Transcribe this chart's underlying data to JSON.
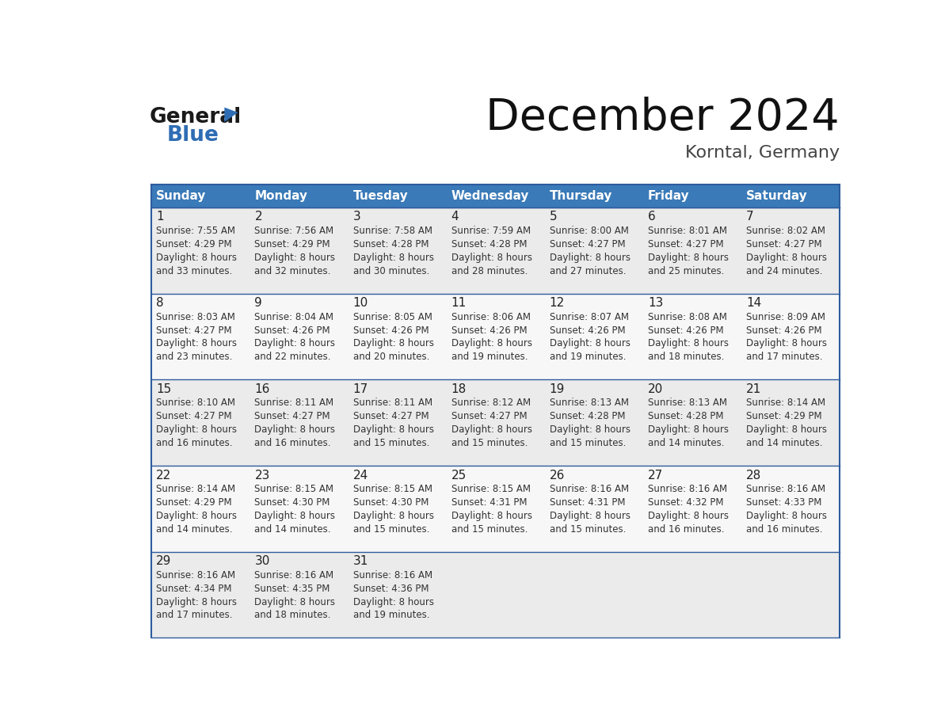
{
  "title": "December 2024",
  "subtitle": "Korntal, Germany",
  "header_bg_color": "#3a7ab8",
  "header_text_color": "#ffffff",
  "cell_bg_even": "#ebebeb",
  "cell_bg_odd": "#f7f7f7",
  "day_headers": [
    "Sunday",
    "Monday",
    "Tuesday",
    "Wednesday",
    "Thursday",
    "Friday",
    "Saturday"
  ],
  "grid_line_color": "#2e5c9e",
  "text_color": "#333333",
  "days": [
    {
      "day": 1,
      "col": 0,
      "row": 0,
      "sunrise": "7:55 AM",
      "sunset": "4:29 PM",
      "daylight": "8 hours",
      "daylight2": "and 33 minutes."
    },
    {
      "day": 2,
      "col": 1,
      "row": 0,
      "sunrise": "7:56 AM",
      "sunset": "4:29 PM",
      "daylight": "8 hours",
      "daylight2": "and 32 minutes."
    },
    {
      "day": 3,
      "col": 2,
      "row": 0,
      "sunrise": "7:58 AM",
      "sunset": "4:28 PM",
      "daylight": "8 hours",
      "daylight2": "and 30 minutes."
    },
    {
      "day": 4,
      "col": 3,
      "row": 0,
      "sunrise": "7:59 AM",
      "sunset": "4:28 PM",
      "daylight": "8 hours",
      "daylight2": "and 28 minutes."
    },
    {
      "day": 5,
      "col": 4,
      "row": 0,
      "sunrise": "8:00 AM",
      "sunset": "4:27 PM",
      "daylight": "8 hours",
      "daylight2": "and 27 minutes."
    },
    {
      "day": 6,
      "col": 5,
      "row": 0,
      "sunrise": "8:01 AM",
      "sunset": "4:27 PM",
      "daylight": "8 hours",
      "daylight2": "and 25 minutes."
    },
    {
      "day": 7,
      "col": 6,
      "row": 0,
      "sunrise": "8:02 AM",
      "sunset": "4:27 PM",
      "daylight": "8 hours",
      "daylight2": "and 24 minutes."
    },
    {
      "day": 8,
      "col": 0,
      "row": 1,
      "sunrise": "8:03 AM",
      "sunset": "4:27 PM",
      "daylight": "8 hours",
      "daylight2": "and 23 minutes."
    },
    {
      "day": 9,
      "col": 1,
      "row": 1,
      "sunrise": "8:04 AM",
      "sunset": "4:26 PM",
      "daylight": "8 hours",
      "daylight2": "and 22 minutes."
    },
    {
      "day": 10,
      "col": 2,
      "row": 1,
      "sunrise": "8:05 AM",
      "sunset": "4:26 PM",
      "daylight": "8 hours",
      "daylight2": "and 20 minutes."
    },
    {
      "day": 11,
      "col": 3,
      "row": 1,
      "sunrise": "8:06 AM",
      "sunset": "4:26 PM",
      "daylight": "8 hours",
      "daylight2": "and 19 minutes."
    },
    {
      "day": 12,
      "col": 4,
      "row": 1,
      "sunrise": "8:07 AM",
      "sunset": "4:26 PM",
      "daylight": "8 hours",
      "daylight2": "and 19 minutes."
    },
    {
      "day": 13,
      "col": 5,
      "row": 1,
      "sunrise": "8:08 AM",
      "sunset": "4:26 PM",
      "daylight": "8 hours",
      "daylight2": "and 18 minutes."
    },
    {
      "day": 14,
      "col": 6,
      "row": 1,
      "sunrise": "8:09 AM",
      "sunset": "4:26 PM",
      "daylight": "8 hours",
      "daylight2": "and 17 minutes."
    },
    {
      "day": 15,
      "col": 0,
      "row": 2,
      "sunrise": "8:10 AM",
      "sunset": "4:27 PM",
      "daylight": "8 hours",
      "daylight2": "and 16 minutes."
    },
    {
      "day": 16,
      "col": 1,
      "row": 2,
      "sunrise": "8:11 AM",
      "sunset": "4:27 PM",
      "daylight": "8 hours",
      "daylight2": "and 16 minutes."
    },
    {
      "day": 17,
      "col": 2,
      "row": 2,
      "sunrise": "8:11 AM",
      "sunset": "4:27 PM",
      "daylight": "8 hours",
      "daylight2": "and 15 minutes."
    },
    {
      "day": 18,
      "col": 3,
      "row": 2,
      "sunrise": "8:12 AM",
      "sunset": "4:27 PM",
      "daylight": "8 hours",
      "daylight2": "and 15 minutes."
    },
    {
      "day": 19,
      "col": 4,
      "row": 2,
      "sunrise": "8:13 AM",
      "sunset": "4:28 PM",
      "daylight": "8 hours",
      "daylight2": "and 15 minutes."
    },
    {
      "day": 20,
      "col": 5,
      "row": 2,
      "sunrise": "8:13 AM",
      "sunset": "4:28 PM",
      "daylight": "8 hours",
      "daylight2": "and 14 minutes."
    },
    {
      "day": 21,
      "col": 6,
      "row": 2,
      "sunrise": "8:14 AM",
      "sunset": "4:29 PM",
      "daylight": "8 hours",
      "daylight2": "and 14 minutes."
    },
    {
      "day": 22,
      "col": 0,
      "row": 3,
      "sunrise": "8:14 AM",
      "sunset": "4:29 PM",
      "daylight": "8 hours",
      "daylight2": "and 14 minutes."
    },
    {
      "day": 23,
      "col": 1,
      "row": 3,
      "sunrise": "8:15 AM",
      "sunset": "4:30 PM",
      "daylight": "8 hours",
      "daylight2": "and 14 minutes."
    },
    {
      "day": 24,
      "col": 2,
      "row": 3,
      "sunrise": "8:15 AM",
      "sunset": "4:30 PM",
      "daylight": "8 hours",
      "daylight2": "and 15 minutes."
    },
    {
      "day": 25,
      "col": 3,
      "row": 3,
      "sunrise": "8:15 AM",
      "sunset": "4:31 PM",
      "daylight": "8 hours",
      "daylight2": "and 15 minutes."
    },
    {
      "day": 26,
      "col": 4,
      "row": 3,
      "sunrise": "8:16 AM",
      "sunset": "4:31 PM",
      "daylight": "8 hours",
      "daylight2": "and 15 minutes."
    },
    {
      "day": 27,
      "col": 5,
      "row": 3,
      "sunrise": "8:16 AM",
      "sunset": "4:32 PM",
      "daylight": "8 hours",
      "daylight2": "and 16 minutes."
    },
    {
      "day": 28,
      "col": 6,
      "row": 3,
      "sunrise": "8:16 AM",
      "sunset": "4:33 PM",
      "daylight": "8 hours",
      "daylight2": "and 16 minutes."
    },
    {
      "day": 29,
      "col": 0,
      "row": 4,
      "sunrise": "8:16 AM",
      "sunset": "4:34 PM",
      "daylight": "8 hours",
      "daylight2": "and 17 minutes."
    },
    {
      "day": 30,
      "col": 1,
      "row": 4,
      "sunrise": "8:16 AM",
      "sunset": "4:35 PM",
      "daylight": "8 hours",
      "daylight2": "and 18 minutes."
    },
    {
      "day": 31,
      "col": 2,
      "row": 4,
      "sunrise": "8:16 AM",
      "sunset": "4:36 PM",
      "daylight": "8 hours",
      "daylight2": "and 19 minutes."
    }
  ],
  "logo_text1": "General",
  "logo_text2": "Blue",
  "logo_color1": "#1a1a1a",
  "logo_color2": "#2e6db4",
  "logo_triangle_color": "#2e6db4",
  "title_fontsize": 40,
  "subtitle_fontsize": 16,
  "header_fontsize": 11,
  "day_num_fontsize": 11,
  "cell_text_fontsize": 8.5
}
